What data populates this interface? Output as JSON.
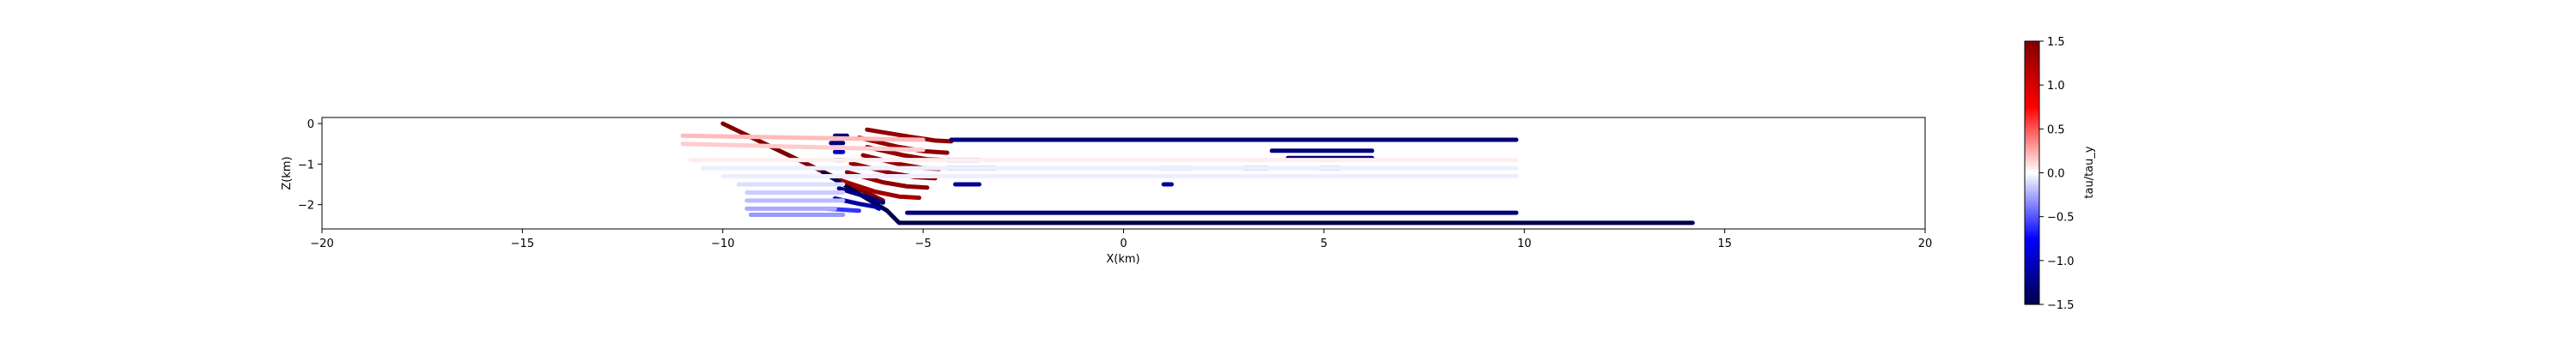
{
  "chart_data": {
    "type": "scatter",
    "xlabel": "X(km)",
    "ylabel": "Z(km)",
    "xlim": [
      -20,
      20
    ],
    "ylim": [
      -2.6,
      0.15
    ],
    "xticks": [
      "−20",
      "−15",
      "−10",
      "−5",
      "0",
      "5",
      "10",
      "15",
      "20"
    ],
    "yticks": [
      "0",
      "−1",
      "−2"
    ],
    "colorbar": {
      "label": "tau/tau_y",
      "colormap": "seismic",
      "range": [
        -1.5,
        1.5
      ],
      "ticks": [
        "1.5",
        "1.0",
        "0.5",
        "0.0",
        "−0.5",
        "−1.0",
        "−1.5"
      ]
    },
    "segments": [
      {
        "x": [
          -10.0,
          -6.0
        ],
        "z": [
          0.0,
          -1.9
        ],
        "value": 1.5
      },
      {
        "x": [
          -7.5,
          -5.9,
          -5.6,
          14.2
        ],
        "z": [
          -1.2,
          -2.15,
          -2.45,
          -2.45
        ],
        "value": -1.5
      },
      {
        "x": [
          -6.4,
          -5.3,
          -4.7,
          -4.3
        ],
        "z": [
          -0.15,
          -0.33,
          -0.42,
          -0.44
        ],
        "value": 1.4
      },
      {
        "x": [
          -6.6,
          -5.6,
          -5.0,
          -4.4
        ],
        "z": [
          -0.35,
          -0.58,
          -0.68,
          -0.72
        ],
        "value": 1.4
      },
      {
        "x": [
          -6.4,
          -5.5,
          -4.9,
          -4.5
        ],
        "z": [
          -0.58,
          -0.78,
          -0.88,
          -0.9
        ],
        "value": 1.4
      },
      {
        "x": [
          -6.5,
          -5.6,
          -5.0,
          -4.6
        ],
        "z": [
          -0.78,
          -1.0,
          -1.1,
          -1.12
        ],
        "value": 1.4
      },
      {
        "x": [
          -6.8,
          -5.8,
          -5.2,
          -4.7
        ],
        "z": [
          -0.98,
          -1.22,
          -1.32,
          -1.35
        ],
        "value": 1.4
      },
      {
        "x": [
          -6.9,
          -6.0,
          -5.4,
          -4.9
        ],
        "z": [
          -1.2,
          -1.45,
          -1.55,
          -1.58
        ],
        "value": 1.4
      },
      {
        "x": [
          -7.0,
          -6.2,
          -5.6,
          -5.1
        ],
        "z": [
          -1.42,
          -1.68,
          -1.8,
          -1.83
        ],
        "value": 1.3
      },
      {
        "x": [
          -4.3,
          9.8
        ],
        "z": [
          -0.4,
          -0.4
        ],
        "value": -1.3
      },
      {
        "x": [
          -4.4,
          -3.2
        ],
        "z": [
          -1.1,
          -1.1
        ],
        "value": -1.3
      },
      {
        "x": [
          -4.4,
          -3.4
        ],
        "z": [
          -1.3,
          -1.3
        ],
        "value": -1.3
      },
      {
        "x": [
          -4.4,
          -3.6
        ],
        "z": [
          -0.9,
          -0.9
        ],
        "value": -1.2
      },
      {
        "x": [
          -4.2,
          -3.6
        ],
        "z": [
          -1.5,
          -1.5
        ],
        "value": -1.2
      },
      {
        "x": [
          -5.4,
          9.8
        ],
        "z": [
          -2.2,
          -2.2
        ],
        "value": -1.3
      },
      {
        "x": [
          3.7,
          6.2
        ],
        "z": [
          -0.67,
          -0.67
        ],
        "value": -1.3
      },
      {
        "x": [
          4.1,
          6.2
        ],
        "z": [
          -0.85,
          -0.85
        ],
        "value": -1.3
      },
      {
        "x": [
          3.0,
          3.6
        ],
        "z": [
          -1.1,
          -1.1
        ],
        "value": -1.0
      },
      {
        "x": [
          4.9,
          5.4
        ],
        "z": [
          -1.1,
          -1.1
        ],
        "value": -0.8
      },
      {
        "x": [
          0.9,
          1.7
        ],
        "z": [
          -1.1,
          -1.1
        ],
        "value": -0.4
      },
      {
        "x": [
          1.1,
          1.6
        ],
        "z": [
          -1.3,
          -1.3
        ],
        "value": -0.6
      },
      {
        "x": [
          -7.2,
          -6.9
        ],
        "z": [
          -0.3,
          -0.3
        ],
        "value": -1.3
      },
      {
        "x": [
          -7.3,
          -7.0
        ],
        "z": [
          -0.48,
          -0.48
        ],
        "value": -1.3
      },
      {
        "x": [
          -7.2,
          -7.0
        ],
        "z": [
          -0.7,
          -0.7
        ],
        "value": -1.0
      },
      {
        "x": [
          -7.2,
          -7.0
        ],
        "z": [
          -0.9,
          -0.9
        ],
        "value": -1.1
      },
      {
        "x": [
          1.0,
          1.2
        ],
        "z": [
          -1.5,
          -1.5
        ],
        "value": -1.2
      },
      {
        "x": [
          -7.1,
          -6.6,
          -6.2,
          -6.0
        ],
        "z": [
          -1.6,
          -1.75,
          -1.88,
          -1.95
        ],
        "value": -1.3
      },
      {
        "x": [
          -7.2,
          -6.6,
          -6.2,
          -6.1
        ],
        "z": [
          -1.85,
          -1.98,
          -2.05,
          -2.1
        ],
        "value": -1.1
      },
      {
        "x": [
          -7.4,
          -6.6
        ],
        "z": [
          -2.1,
          -2.15
        ],
        "value": -0.6
      },
      {
        "x": [
          -11.0,
          -5.0
        ],
        "z": [
          -0.3,
          -0.4
        ],
        "value": 0.2
      },
      {
        "x": [
          -11.0,
          -5.0
        ],
        "z": [
          -0.5,
          -0.65
        ],
        "value": 0.15
      },
      {
        "x": [
          -10.8,
          9.8
        ],
        "z": [
          -0.9,
          -0.9
        ],
        "value": 0.05
      },
      {
        "x": [
          -10.5,
          9.8
        ],
        "z": [
          -1.1,
          -1.1
        ],
        "value": -0.05
      },
      {
        "x": [
          -10.0,
          9.8
        ],
        "z": [
          -1.3,
          -1.3
        ],
        "value": -0.05
      },
      {
        "x": [
          -9.6,
          -7.0
        ],
        "z": [
          -1.5,
          -1.5
        ],
        "value": -0.1
      },
      {
        "x": [
          -9.4,
          -7.0
        ],
        "z": [
          -1.7,
          -1.7
        ],
        "value": -0.15
      },
      {
        "x": [
          -9.4,
          -7.0
        ],
        "z": [
          -1.9,
          -1.9
        ],
        "value": -0.2
      },
      {
        "x": [
          -9.4,
          -7.2
        ],
        "z": [
          -2.1,
          -2.1
        ],
        "value": -0.25
      },
      {
        "x": [
          -9.3,
          -7.0
        ],
        "z": [
          -2.25,
          -2.25
        ],
        "value": -0.3
      }
    ]
  }
}
